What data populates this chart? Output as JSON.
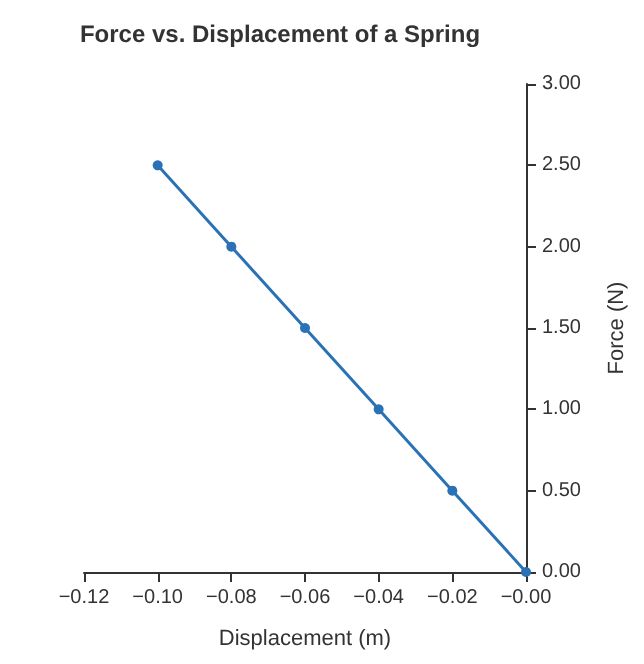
{
  "chart_data": {
    "type": "line",
    "title": "Force vs. Displacement of a Spring",
    "xlabel": "Displacement (m)",
    "ylabel": "Force (N)",
    "x": [
      -0.1,
      -0.08,
      -0.06,
      -0.04,
      -0.02,
      0
    ],
    "series": [
      {
        "color": "#2a72b5",
        "values": [
          2.5,
          2.0,
          1.5,
          1.0,
          0.5,
          0
        ]
      }
    ],
    "xlim": [
      -0.12,
      0
    ],
    "xticks": [
      {
        "value": -0.12,
        "label": "−0.12"
      },
      {
        "value": -0.1,
        "label": "−0.10"
      },
      {
        "value": -0.08,
        "label": "−0.08"
      },
      {
        "value": -0.06,
        "label": "−0.06"
      },
      {
        "value": -0.04,
        "label": "−0.04"
      },
      {
        "value": -0.02,
        "label": "−0.02"
      },
      {
        "value": 0,
        "label": "−0.00"
      }
    ],
    "ylim": [
      0,
      3
    ],
    "yticks": [
      {
        "value": 0,
        "label": "0.00"
      },
      {
        "value": 0.5,
        "label": "0.50"
      },
      {
        "value": 1,
        "label": "1.00"
      },
      {
        "value": 1.5,
        "label": "1.50"
      },
      {
        "value": 2,
        "label": "2.00"
      },
      {
        "value": 2.5,
        "label": "2.50"
      },
      {
        "value": 3,
        "label": "3.00"
      }
    ],
    "grid": false,
    "marker": "circle",
    "line_style": "solid"
  }
}
